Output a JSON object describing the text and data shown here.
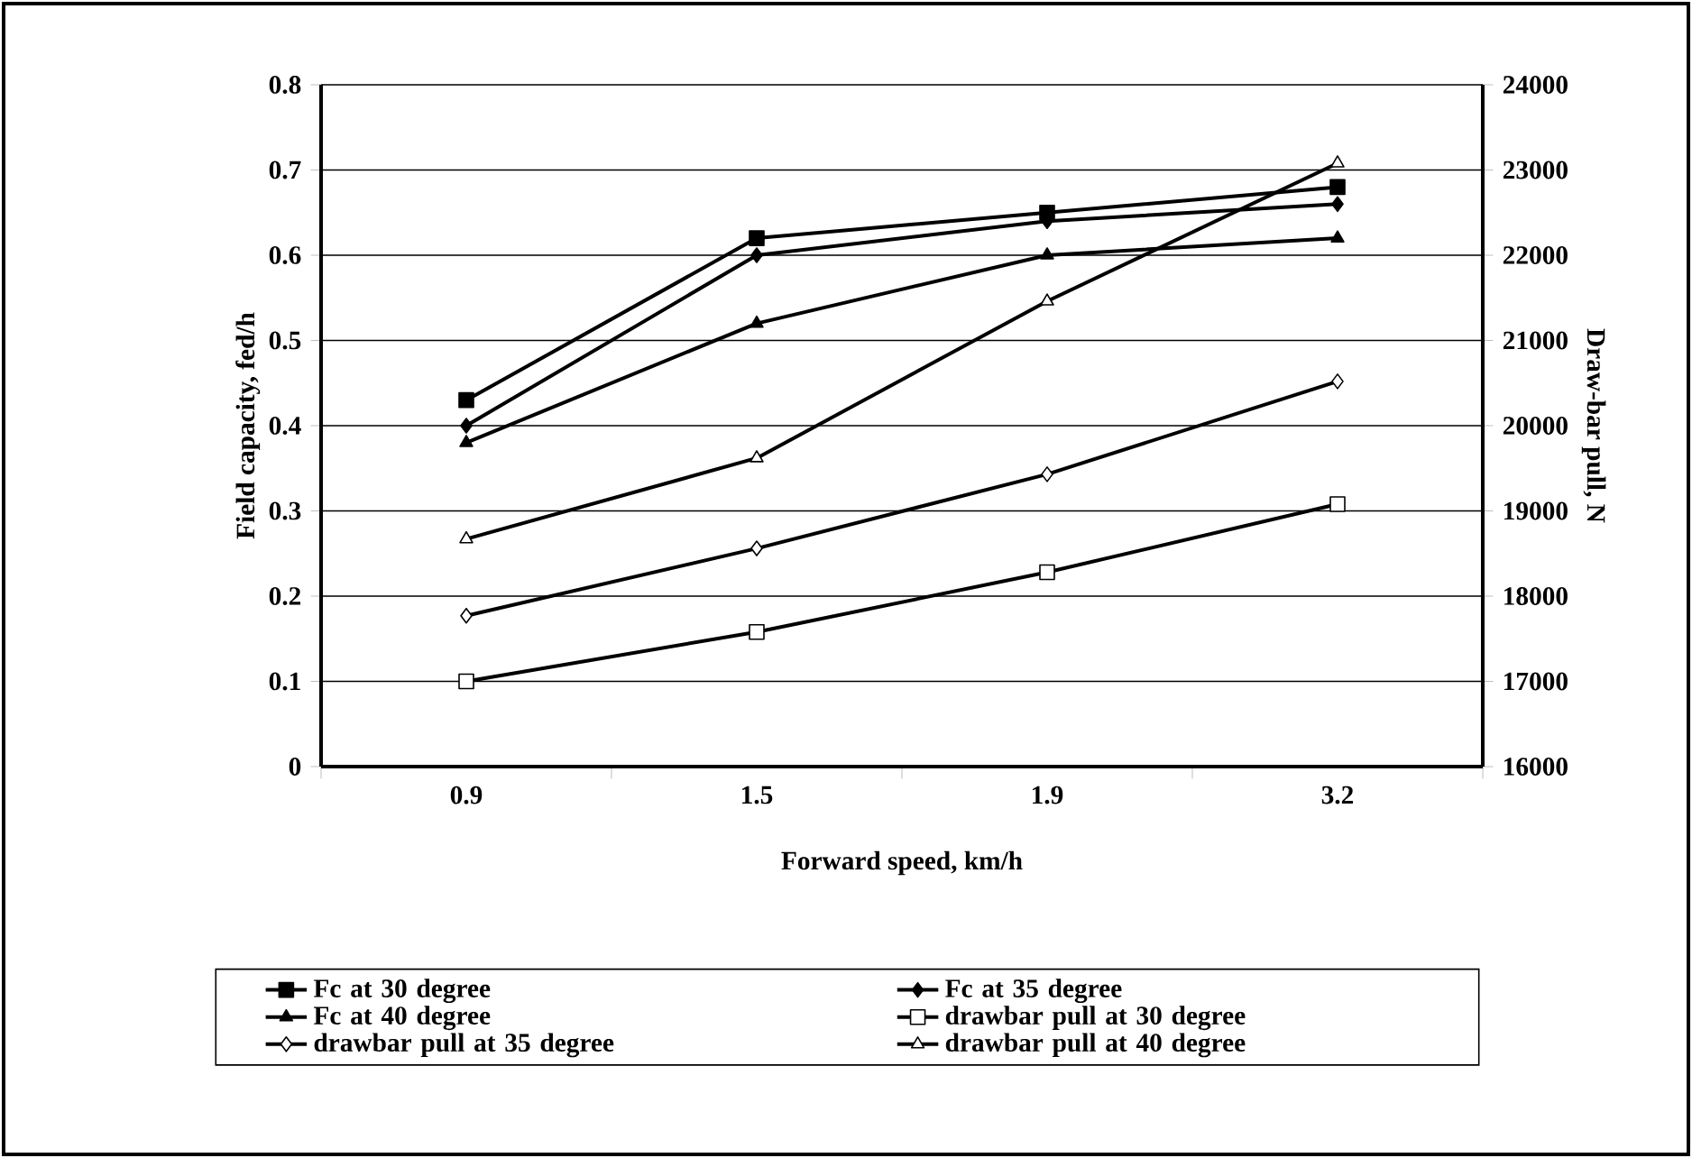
{
  "chart_data": {
    "type": "line",
    "xlabel": "Forward speed, km/h",
    "ylabel": "Field capacity, fed/h",
    "y2label": "Draw-bar pull, N",
    "categories": [
      "0.9",
      "1.5",
      "1.9",
      "3.2"
    ],
    "ylim": [
      0,
      0.8
    ],
    "yticks": [
      0,
      0.1,
      0.2,
      0.3,
      0.4,
      0.5,
      0.6,
      0.7,
      0.8
    ],
    "y2lim": [
      16000,
      24000
    ],
    "y2ticks": [
      16000,
      17000,
      18000,
      19000,
      20000,
      21000,
      22000,
      23000,
      24000
    ],
    "grid": "y",
    "legend": "bottom",
    "line_style": "solid",
    "series": [
      {
        "name": "Fc at 30 degree",
        "color": "#000000",
        "marker": "square",
        "values": [
          0.43,
          0.62,
          0.65,
          0.68
        ]
      },
      {
        "name": "Fc at 35 degree",
        "color": "#000000",
        "marker": "diamond",
        "values": [
          0.4,
          0.6,
          0.64,
          0.66
        ]
      },
      {
        "name": "Fc at 40 degree",
        "color": "#000000",
        "marker": "triangle",
        "values": [
          0.38,
          0.52,
          0.6,
          0.62
        ]
      },
      {
        "name": "drawbar pull at 30 degree",
        "color": "#000000",
        "marker": "square",
        "axis": "y2",
        "values": [
          17000,
          17580,
          18280,
          19080
        ]
      },
      {
        "name": "drawbar pull at 35 degree",
        "color": "#000000",
        "marker": "diamond",
        "axis": "y2",
        "values": [
          17770,
          18560,
          19430,
          20520
        ]
      },
      {
        "name": "drawbar pull at 40 degree",
        "color": "#000000",
        "marker": "triangle",
        "axis": "y2",
        "values": [
          18670,
          19620,
          21460,
          23080
        ]
      }
    ]
  }
}
